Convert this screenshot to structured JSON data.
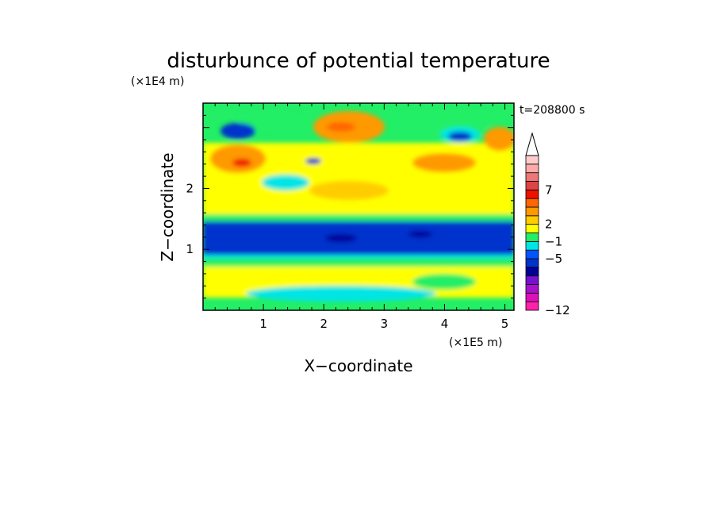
{
  "chart_data": {
    "type": "heatmap",
    "title": "disturbunce of potential temperature",
    "xlabel": "X−coordinate",
    "ylabel": "Z−coordinate",
    "x_unit": "(×1E5 m)",
    "y_unit": "(×1E4 m)",
    "time_label": "t=208800 s",
    "xlim": [
      0,
      5.15
    ],
    "ylim": [
      0,
      3.4
    ],
    "x_ticks": [
      {
        "value": 1,
        "label": "1"
      },
      {
        "value": 2,
        "label": "2"
      },
      {
        "value": 3,
        "label": "3"
      },
      {
        "value": 4,
        "label": "4"
      },
      {
        "value": 5,
        "label": "5"
      }
    ],
    "y_ticks": [
      {
        "value": 1,
        "label": "1"
      },
      {
        "value": 2,
        "label": "2"
      }
    ],
    "colorbar": {
      "bins_bottom_to_top": [
        "#ff22aa",
        "#dd11bb",
        "#aa11cc",
        "#7711cc",
        "#000099",
        "#0033cc",
        "#0055ff",
        "#00e5e5",
        "#22ee66",
        "#ffff00",
        "#ffcc00",
        "#ff9900",
        "#ff6600",
        "#ee1100",
        "#dd4444",
        "#ee7777",
        "#ffaaaa",
        "#ffcccc"
      ],
      "tick_labels": [
        {
          "label": "−12",
          "bin_edge": 0
        },
        {
          "label": "−5",
          "bin_edge": 6
        },
        {
          "label": "−1",
          "bin_edge": 8
        },
        {
          "label": "2",
          "bin_edge": 10
        },
        {
          "label": "7",
          "bin_edge": 14
        }
      ],
      "has_top_arrow": true
    },
    "field_description_bands": [
      {
        "z_range": [
          0,
          0.85
        ],
        "dominant": "green/yellow with cyan patches"
      },
      {
        "z_range": [
          0.85,
          1.5
        ],
        "dominant": "blue (strong negative)"
      },
      {
        "z_range": [
          1.5,
          3.4
        ],
        "dominant": "yellow/orange/green with blue and cyan patches"
      }
    ]
  }
}
